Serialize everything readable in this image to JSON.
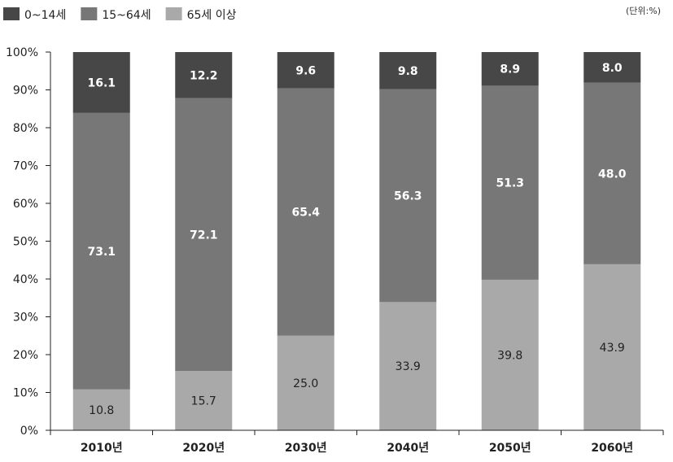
{
  "chart_data": {
    "type": "stacked_bar_100",
    "unit_label": "(단위:%)",
    "categories": [
      "2010년",
      "2020년",
      "2030년",
      "2040년",
      "2050년",
      "2060년"
    ],
    "series": [
      {
        "name": "65세 이상",
        "color": "#a9a9a9",
        "values": [
          10.8,
          15.7,
          25.0,
          33.9,
          39.8,
          43.9
        ],
        "labels": [
          "10.8",
          "15.7",
          "25.0",
          "33.9",
          "39.8",
          "43.9"
        ]
      },
      {
        "name": "15~64세",
        "color": "#777777",
        "values": [
          73.1,
          72.1,
          65.4,
          56.3,
          51.3,
          48.0
        ],
        "labels": [
          "73.1",
          "72.1",
          "65.4",
          "56.3",
          "51.3",
          "48.0"
        ]
      },
      {
        "name": "0~14세",
        "color": "#474747",
        "values": [
          16.1,
          12.2,
          9.6,
          9.8,
          8.9,
          8.0
        ],
        "labels": [
          "16.1",
          "12.2",
          "9.6",
          "9.8",
          "8.9",
          "8.0"
        ]
      }
    ],
    "legend_order": [
      "0~14세",
      "15~64세",
      "65세 이상"
    ],
    "legend_position": "top-left",
    "yticks": [
      "0%",
      "10%",
      "20%",
      "30%",
      "40%",
      "50%",
      "60%",
      "70%",
      "80%",
      "90%",
      "100%"
    ],
    "ylim": [
      0,
      100
    ],
    "grid": false
  }
}
